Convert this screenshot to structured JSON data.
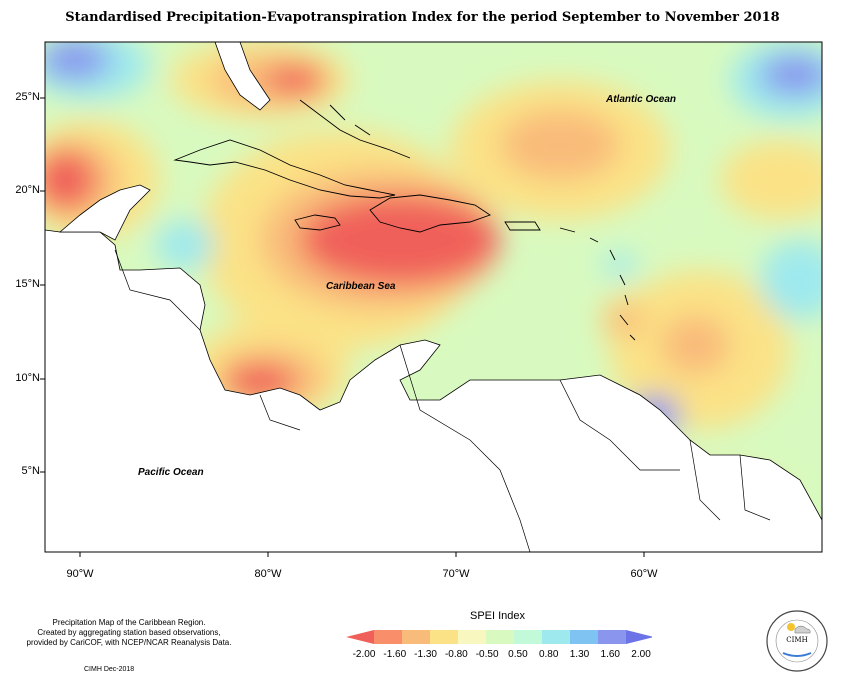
{
  "title": "Standardised Precipitation-Evapotranspiration Index for the period September to November 2018",
  "map": {
    "latitude_labels": [
      "25°N",
      "20°N",
      "15°N",
      "10°N",
      "5°N"
    ],
    "longitude_labels": [
      "90°W",
      "80°W",
      "70°W",
      "60°W"
    ],
    "place_labels": {
      "atlantic": "Atlantic Ocean",
      "caribbean": "Caribbean Sea",
      "pacific": "Pacific Ocean"
    }
  },
  "legend": {
    "title": "SPEI Index",
    "ticks": [
      "-2.00",
      "-1.60",
      "-1.30",
      "-0.80",
      "-0.50",
      "0.50",
      "0.80",
      "1.30",
      "1.60",
      "2.00"
    ],
    "colors": [
      "#f0605a",
      "#f88f6a",
      "#f9bb7a",
      "#fbe286",
      "#f7f7bf",
      "#d8fac0",
      "#c2f9d8",
      "#9ee9ee",
      "#7fc3f2",
      "#8a95ee",
      "#6b73e6"
    ]
  },
  "credit": {
    "line1": "Precipitation Map of the Caribbean Region.",
    "line2": "Created by aggregating station based observations,",
    "line3": "provided by CariCOF, with NCEP/NCAR Reanalysis Data.",
    "date": "CIMH Dec-2018"
  },
  "logo": {
    "name": "CIMH"
  }
}
